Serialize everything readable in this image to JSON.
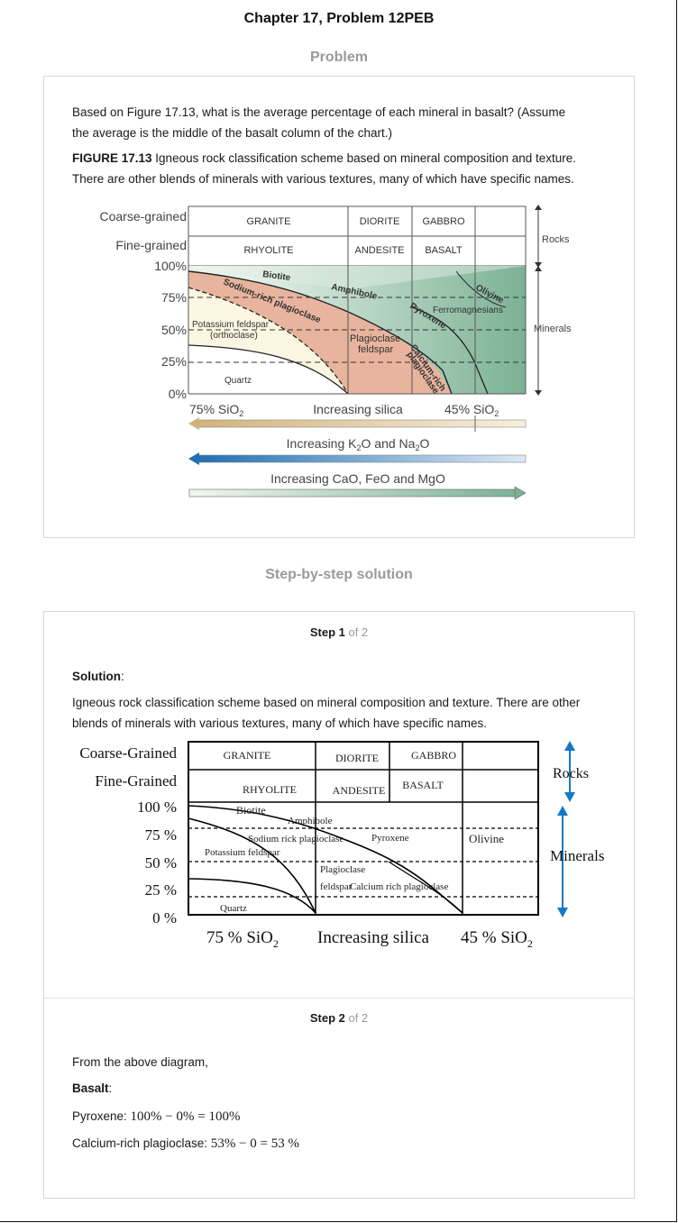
{
  "header": {
    "title": "Chapter 17, Problem 12PEB"
  },
  "problem": {
    "section_label": "Problem",
    "question_line1": "Based on Figure 17.13, what is the average percentage of each mineral in basalt? (Assume",
    "question_line2": "the average is the middle of the basalt column of the chart.)",
    "figure_label": "FIGURE 17.13",
    "figure_caption_line1": " Igneous rock classification scheme based on mineral composition and texture.",
    "figure_caption_line2": "There are other blends of minerals with various textures, many of which have specific names."
  },
  "figure1": {
    "row_labels": [
      "Coarse-grained",
      "Fine-grained"
    ],
    "coarse_rocks": [
      "GRANITE",
      "DIORITE",
      "GABBRO"
    ],
    "fine_rocks": [
      "RHYOLITE",
      "ANDESITE",
      "BASALT"
    ],
    "y_ticks": [
      "100%",
      "75%",
      "50%",
      "25%",
      "0%"
    ],
    "minerals": {
      "biotite": "Biotite",
      "sodium": "Sodium-rich plagioclase",
      "amphibole": "Amphibole",
      "olivine": "Olivine",
      "pyroxene": "Pyroxene",
      "ferro": "Ferromagnesians",
      "kfeld1": "Potassium feldspar",
      "kfeld2": "(orthoclase)",
      "plag1": "Plagioclase",
      "plag2": "feldspar",
      "calcium1": "Calcium-rich",
      "calcium2": "plagioclase",
      "quartz": "Quartz"
    },
    "side_labels": {
      "rocks": "Rocks",
      "minerals": "Minerals"
    },
    "silica_left": "75% SiO",
    "silica_left_sub": "2",
    "silica_mid": "Increasing silica",
    "silica_right": "45% SiO",
    "silica_right_sub": "2",
    "arrow2_label_a": "Increasing K",
    "arrow2_sub_a": "2",
    "arrow2_label_b": "O and Na",
    "arrow2_sub_b": "2",
    "arrow2_label_c": "O",
    "arrow3_label": "Increasing CaO, FeO and MgO",
    "colors": {
      "ferromag": "#7bb295",
      "plag": "#e8b49d",
      "kfeld": "#fbf6e1",
      "quartz": "#ffffff",
      "blue_arrow": "#1f6fb2",
      "tan_arrow": "#d2b27c"
    }
  },
  "solution": {
    "section_label": "Step-by-step solution",
    "step1": {
      "label": "Step 1",
      "of": " of 2"
    },
    "solution_label": "Solution",
    "solution_colon": ":",
    "text_line1": "Igneous rock classification scheme based on mineral composition and texture. There are other",
    "text_line2": "blends of minerals with various textures, many of which have specific names.",
    "step2": {
      "label": "Step 2",
      "of": " of 2"
    },
    "from_text": "From the above diagram,",
    "basalt_label": "Basalt",
    "basalt_colon": ":",
    "pyroxene_label": "Pyroxene: ",
    "pyroxene_calc": "100% − 0% = 100%",
    "calcium_label": "Calcium-rich plagioclase: ",
    "calcium_calc": "53% − 0 = 53 %"
  },
  "figure2": {
    "row_labels": [
      "Coarse-Grained",
      "Fine-Grained"
    ],
    "coarse_rocks": [
      "GRANITE",
      "DIORITE",
      "GABBRO"
    ],
    "fine_rocks": [
      "RHYOLITE",
      "ANDESITE",
      "BASALT"
    ],
    "y_ticks": [
      "100 %",
      "75 %",
      "50 %",
      "25 %",
      "0 %"
    ],
    "minerals": {
      "biotite": "Biotite",
      "amphibole": "Amphibole",
      "sodium": "Sodium rick plagioclase",
      "pyroxene": "Pyroxene",
      "olivine": "Olivine",
      "kfeld": "Potassium feldspar",
      "plag1": "Plagioclase",
      "plag2": "feldspar",
      "calcium": "Calcium rich plagioclase",
      "quartz": "Quartz"
    },
    "side_labels": {
      "rocks": "Rocks",
      "minerals": "Minerals"
    },
    "silica_left": "75 % SiO",
    "silica_left_sub": "2",
    "silica_mid": "Increasing silica",
    "silica_right": "45 % SiO",
    "silica_right_sub": "2",
    "colors": {
      "arrow": "#1479c4"
    }
  }
}
